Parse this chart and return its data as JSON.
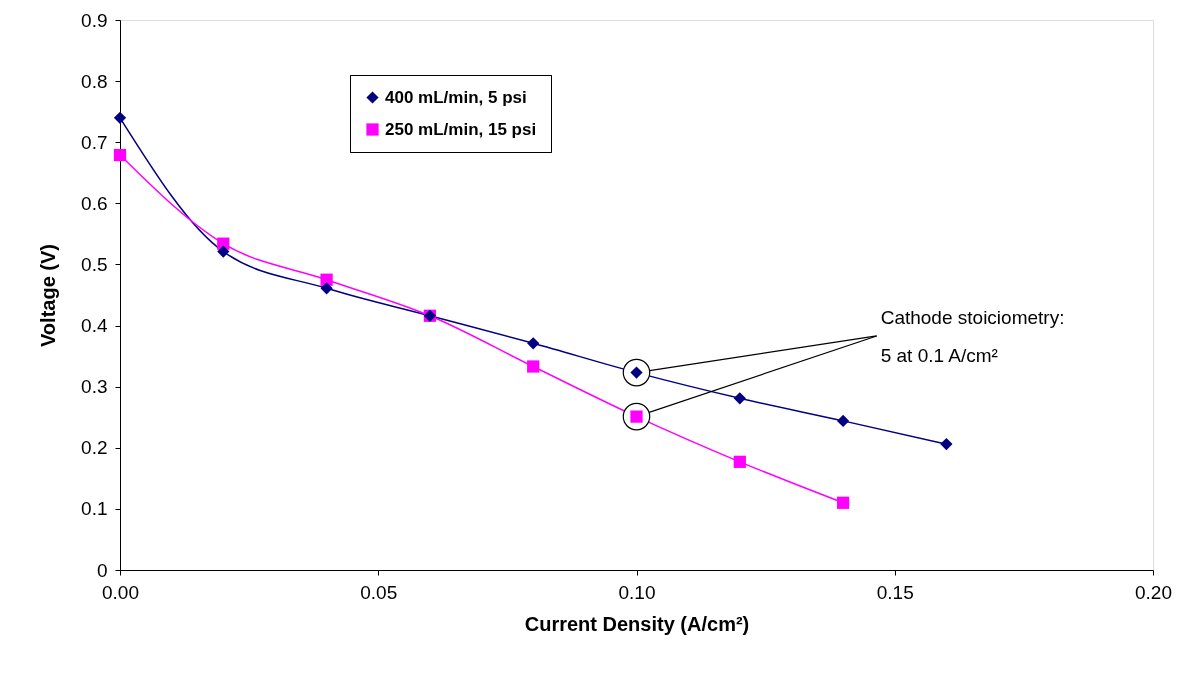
{
  "chart_data": {
    "type": "line",
    "xlabel": "Current Density (A/cm²)",
    "ylabel": "Voltage (V)",
    "xlim": [
      0,
      0.2
    ],
    "xticks": [
      {
        "value": 0,
        "label": "0.00"
      },
      {
        "value": 0.05,
        "label": "0.05"
      },
      {
        "value": 0.1,
        "label": "0.10"
      },
      {
        "value": 0.15,
        "label": "0.15"
      },
      {
        "value": 0.2,
        "label": "0.20"
      }
    ],
    "ylim": [
      0,
      0.9
    ],
    "yticks": [
      0,
      0.1,
      0.2,
      0.3,
      0.4,
      0.5,
      0.6,
      0.7,
      0.8,
      0.9
    ],
    "grid": false,
    "legend": "top left",
    "series": [
      {
        "name": "400 mL/min, 5 psi",
        "color": "#000080",
        "marker": "diamond",
        "x": [
          0,
          0.02,
          0.04,
          0.06,
          0.08,
          0.1,
          0.12,
          0.14,
          0.16
        ],
        "values": [
          0.74,
          0.521,
          0.461,
          0.416,
          0.371,
          0.323,
          0.281,
          0.244,
          0.206
        ]
      },
      {
        "name": "250 mL/min, 15 psi",
        "color": "#ff00ff",
        "marker": "square",
        "x": [
          0,
          0.02,
          0.04,
          0.06,
          0.08,
          0.1,
          0.12,
          0.14
        ],
        "values": [
          0.679,
          0.534,
          0.475,
          0.416,
          0.333,
          0.251,
          0.177,
          0.11
        ]
      }
    ],
    "annotations": [
      {
        "text": "Cathode stoiciometry:\n5 at 0.1 A/cm²",
        "x": 0.1,
        "y": 0.323
      }
    ]
  }
}
